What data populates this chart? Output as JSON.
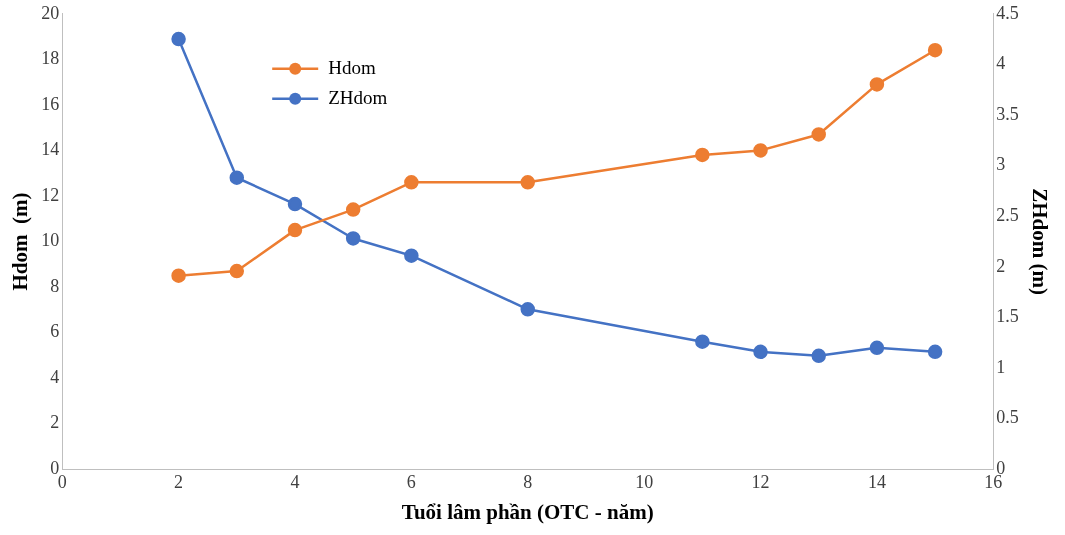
{
  "chart_data": {
    "type": "line",
    "xlabel": "Tuổi lâm phần (OTC - năm)",
    "ylabel": "Hdom  (m)",
    "y2label": "ZHdom (m)",
    "x": [
      2,
      3,
      4,
      5,
      6,
      8,
      11,
      12,
      13,
      14,
      15
    ],
    "series": [
      {
        "name": "Hdom",
        "color": "#ed7d31",
        "values": [
          8.5,
          8.7,
          10.5,
          11.4,
          12.6,
          12.6,
          13.8,
          14.0,
          14.7,
          16.9,
          18.4
        ]
      },
      {
        "name": "ZHdom",
        "color": "#4472c4",
        "axis": "y2",
        "values": [
          4.25,
          2.88,
          2.62,
          2.28,
          2.11,
          1.58,
          1.26,
          1.16,
          1.12,
          1.2,
          1.16
        ]
      }
    ],
    "xlim": [
      0,
      16
    ],
    "xticks": [
      0,
      2,
      4,
      6,
      8,
      10,
      12,
      14,
      16
    ],
    "ylim": [
      0,
      20
    ],
    "yticks": [
      0,
      2,
      4,
      6,
      8,
      10,
      12,
      14,
      16,
      18,
      20
    ],
    "y2lim": [
      0,
      4.5
    ],
    "y2ticks": [
      0,
      0.5,
      1,
      1.5,
      2,
      2.5,
      3,
      3.5,
      4,
      4.5
    ],
    "grid": false,
    "legend": "top left",
    "marker": "circle",
    "line_style": "solid"
  }
}
